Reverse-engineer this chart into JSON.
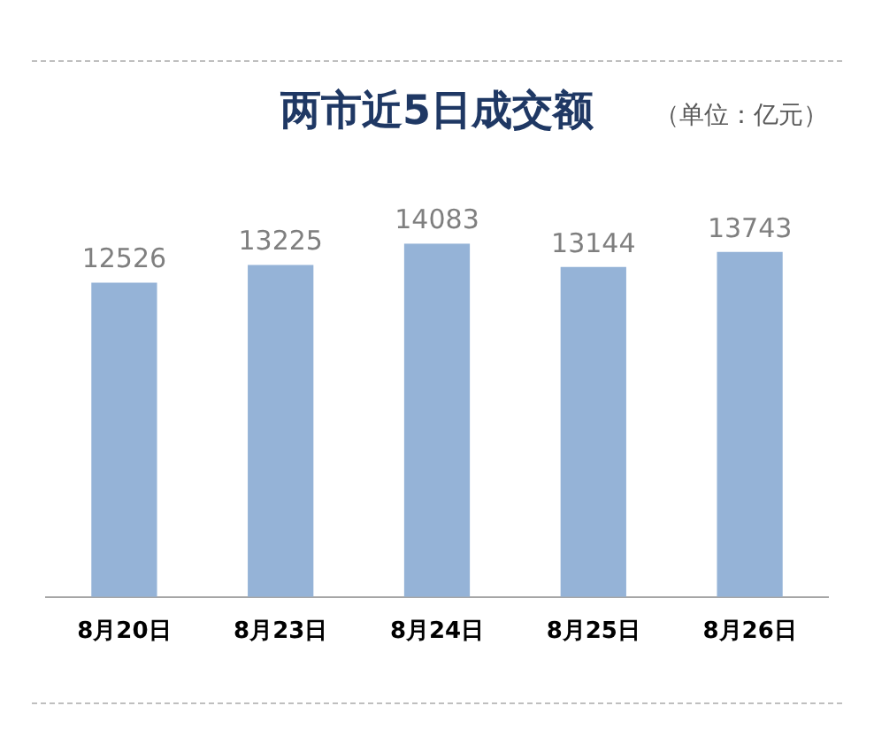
{
  "chart_data": {
    "type": "bar",
    "title": "两市近5日成交额",
    "annotations": [
      "（单位：亿元）"
    ],
    "categories": [
      "8月20日",
      "8月23日",
      "8月24日",
      "8月25日",
      "8月26日"
    ],
    "values": [
      12526,
      13225,
      14083,
      13144,
      13743
    ],
    "color": "#95b3d7",
    "data_labels": true
  }
}
